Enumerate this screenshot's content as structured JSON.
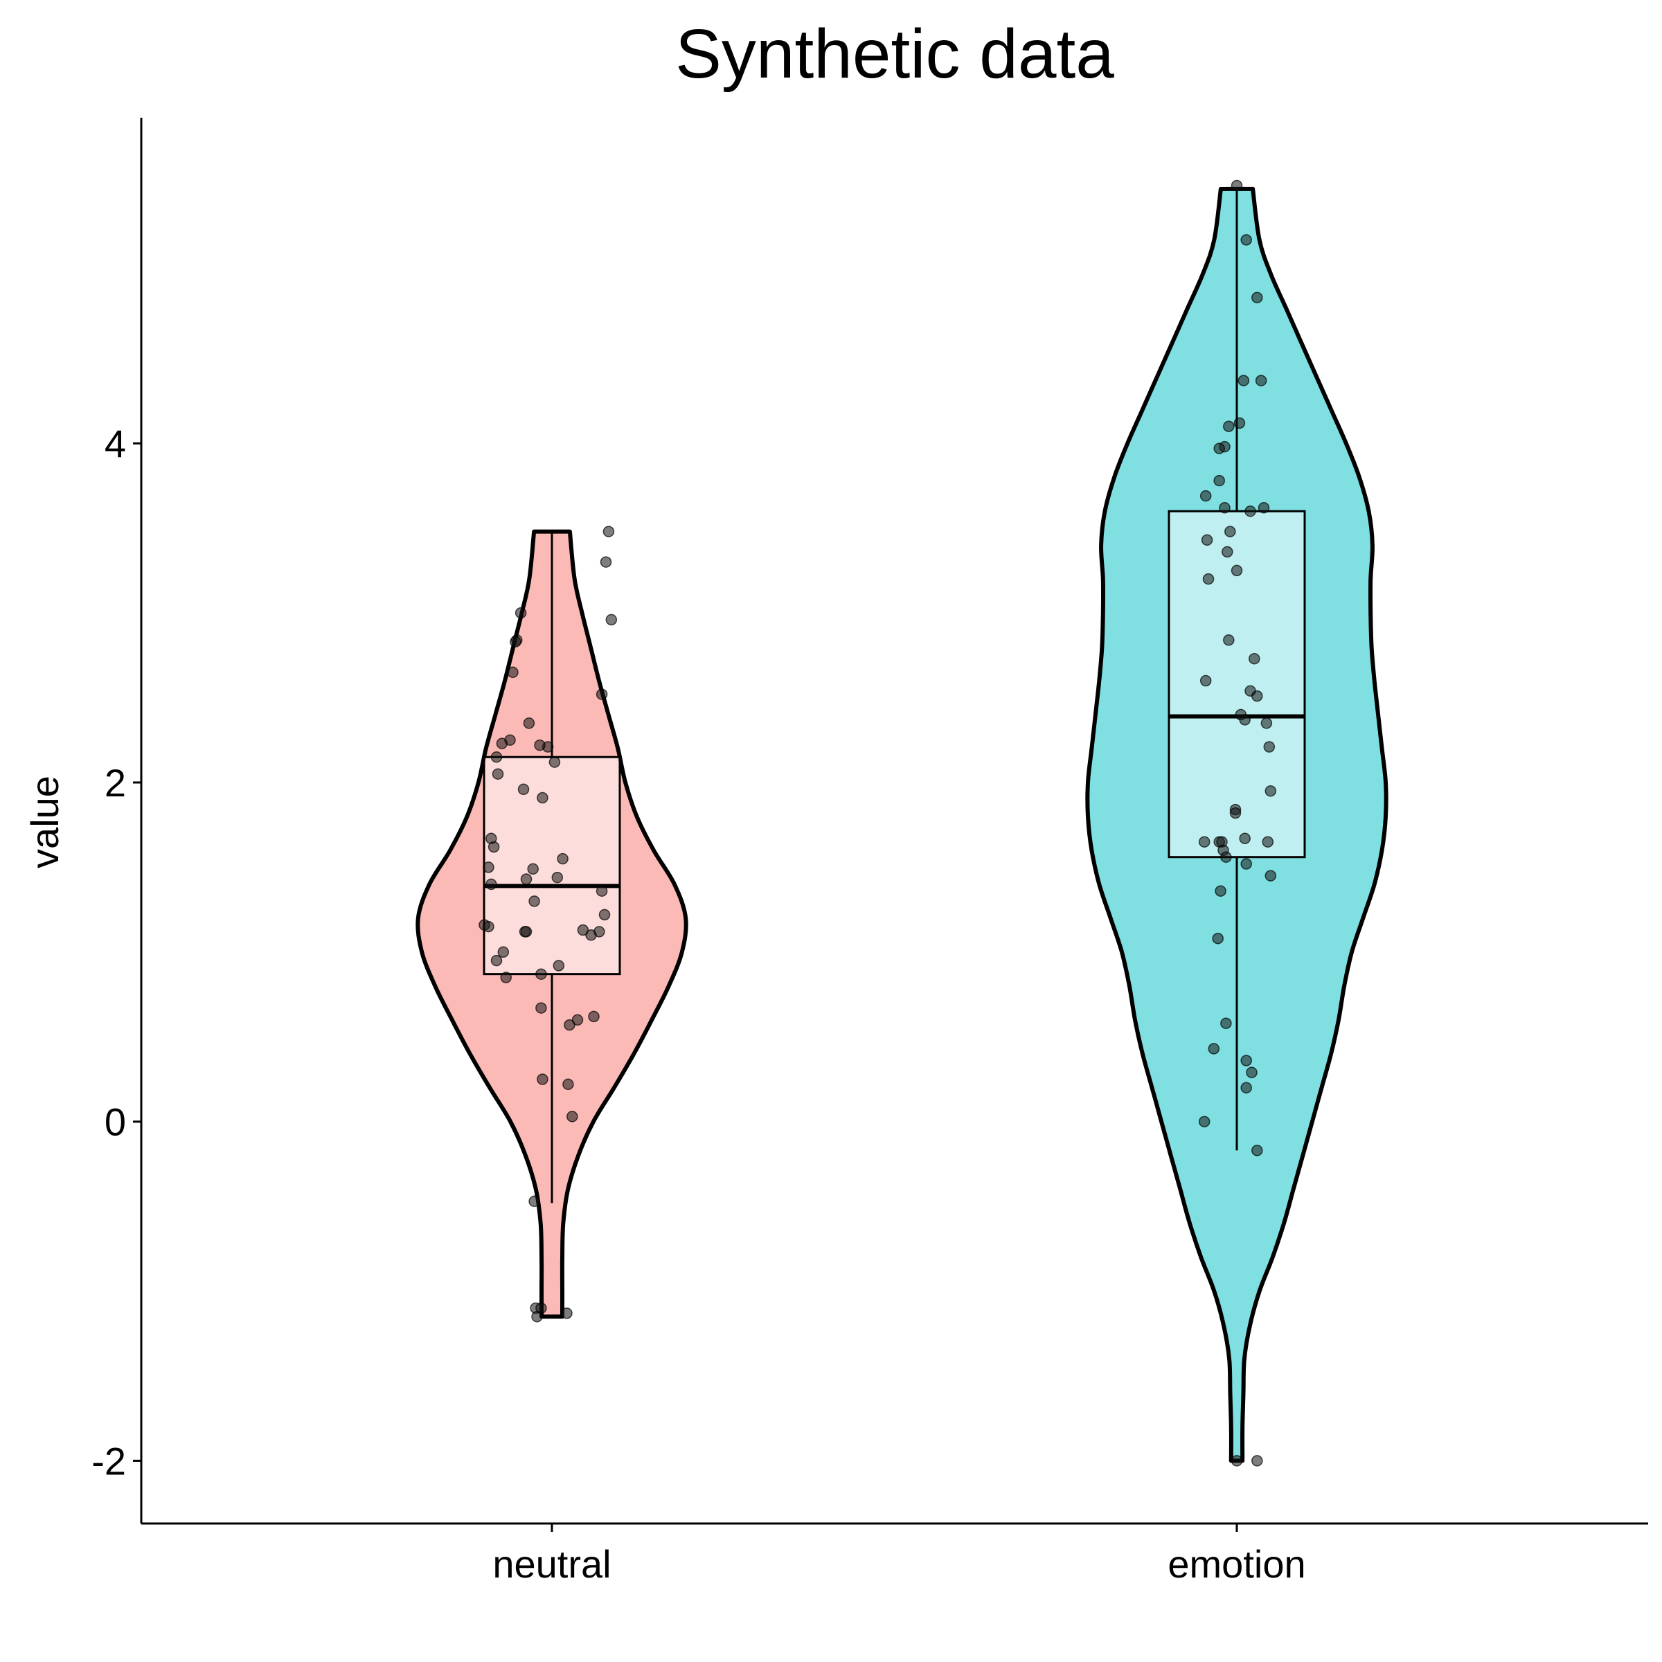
{
  "chart_data": {
    "type": "violin",
    "title": "Synthetic data",
    "xlabel": "",
    "ylabel": "value",
    "ylim": [
      -2.37,
      5.9
    ],
    "yticks": [
      -2,
      0,
      2,
      4
    ],
    "ytick_labels": [
      "-2",
      "0",
      "2",
      "4"
    ],
    "categories": [
      "neutral",
      "emotion"
    ],
    "grid": false,
    "legend": "none",
    "series": [
      {
        "category": "neutral",
        "fill": "#F8766D",
        "box": {
          "whisker_low": -0.48,
          "q1": 0.87,
          "median": 1.39,
          "q3": 2.15,
          "whisker_high": 3.48
        },
        "violin_range": [
          -1.15,
          3.48
        ],
        "violin_density": [
          [
            -1.15,
            0.11
          ],
          [
            -1.0,
            0.11
          ],
          [
            -0.8,
            0.11
          ],
          [
            -0.6,
            0.12
          ],
          [
            -0.4,
            0.17
          ],
          [
            -0.2,
            0.28
          ],
          [
            0.0,
            0.44
          ],
          [
            0.2,
            0.66
          ],
          [
            0.4,
            0.87
          ],
          [
            0.6,
            1.06
          ],
          [
            0.8,
            1.24
          ],
          [
            1.0,
            1.38
          ],
          [
            1.2,
            1.42
          ],
          [
            1.4,
            1.3
          ],
          [
            1.6,
            1.08
          ],
          [
            1.8,
            0.9
          ],
          [
            2.0,
            0.78
          ],
          [
            2.2,
            0.7
          ],
          [
            2.4,
            0.6
          ],
          [
            2.6,
            0.5
          ],
          [
            2.8,
            0.41
          ],
          [
            3.0,
            0.32
          ],
          [
            3.2,
            0.24
          ],
          [
            3.48,
            0.19
          ]
        ],
        "points": [
          [
            0.85,
            1.12
          ],
          [
            0.9,
            3.3
          ],
          [
            0.94,
            2.96
          ],
          [
            0.92,
            3.48
          ],
          [
            0.87,
            2.52
          ],
          [
            0.79,
            1.1
          ],
          [
            0.81,
            0.62
          ],
          [
            0.69,
            0.6
          ],
          [
            0.63,
            0.57
          ],
          [
            0.55,
            0.92
          ],
          [
            0.73,
            1.13
          ],
          [
            0.89,
            1.22
          ],
          [
            0.87,
            1.36
          ],
          [
            0.58,
            1.55
          ],
          [
            0.54,
            1.44
          ],
          [
            0.43,
            1.91
          ],
          [
            0.52,
            2.12
          ],
          [
            0.47,
            2.21
          ],
          [
            0.41,
            2.22
          ],
          [
            0.33,
            2.35
          ],
          [
            0.27,
            3.0
          ],
          [
            0.24,
            2.84
          ],
          [
            0.21,
            2.65
          ],
          [
            0.13,
            2.23
          ],
          [
            0.09,
            2.15
          ],
          [
            0.1,
            2.05
          ],
          [
            0.07,
            1.62
          ],
          [
            0.05,
            1.67
          ],
          [
            0.03,
            1.5
          ],
          [
            0.05,
            1.4
          ],
          [
            0.0,
            1.16
          ],
          [
            0.03,
            1.15
          ],
          [
            0.09,
            0.95
          ],
          [
            0.14,
            1.0
          ],
          [
            0.16,
            0.85
          ],
          [
            0.23,
            2.83
          ],
          [
            0.19,
            2.25
          ],
          [
            0.29,
            1.96
          ],
          [
            0.3,
            1.12
          ],
          [
            0.31,
            1.43
          ],
          [
            0.31,
            1.12
          ],
          [
            0.37,
            1.3
          ],
          [
            0.36,
            1.49
          ],
          [
            0.42,
            0.87
          ],
          [
            0.42,
            0.67
          ],
          [
            0.43,
            0.25
          ],
          [
            0.37,
            -0.47
          ],
          [
            0.38,
            -1.1
          ],
          [
            0.39,
            -1.15
          ],
          [
            0.42,
            -1.1
          ],
          [
            0.61,
            -1.13
          ],
          [
            0.62,
            0.22
          ],
          [
            0.65,
            0.03
          ]
        ]
      },
      {
        "category": "emotion",
        "fill": "#00BFC4",
        "box": {
          "whisker_low": -0.17,
          "q1": 1.56,
          "median": 2.39,
          "q3": 3.6,
          "whisker_high": 5.5
        },
        "violin_range": [
          -2.0,
          5.5
        ],
        "violin_density": [
          [
            -2.0,
            0.06
          ],
          [
            -1.8,
            0.06
          ],
          [
            -1.6,
            0.07
          ],
          [
            -1.4,
            0.08
          ],
          [
            -1.2,
            0.14
          ],
          [
            -1.0,
            0.24
          ],
          [
            -0.8,
            0.38
          ],
          [
            -0.6,
            0.5
          ],
          [
            -0.4,
            0.6
          ],
          [
            -0.2,
            0.7
          ],
          [
            0.0,
            0.8
          ],
          [
            0.2,
            0.9
          ],
          [
            0.4,
            1.0
          ],
          [
            0.6,
            1.08
          ],
          [
            0.8,
            1.14
          ],
          [
            1.0,
            1.22
          ],
          [
            1.2,
            1.34
          ],
          [
            1.4,
            1.46
          ],
          [
            1.6,
            1.54
          ],
          [
            1.8,
            1.58
          ],
          [
            2.0,
            1.58
          ],
          [
            2.2,
            1.54
          ],
          [
            2.4,
            1.5
          ],
          [
            2.6,
            1.46
          ],
          [
            2.8,
            1.43
          ],
          [
            3.0,
            1.42
          ],
          [
            3.2,
            1.42
          ],
          [
            3.4,
            1.44
          ],
          [
            3.6,
            1.4
          ],
          [
            3.8,
            1.3
          ],
          [
            4.0,
            1.16
          ],
          [
            4.2,
            1.0
          ],
          [
            4.4,
            0.84
          ],
          [
            4.6,
            0.68
          ],
          [
            4.8,
            0.52
          ],
          [
            5.0,
            0.36
          ],
          [
            5.2,
            0.24
          ],
          [
            5.5,
            0.17
          ]
        ],
        "points": [
          [
            1.0,
            5.52
          ],
          [
            1.07,
            5.2
          ],
          [
            1.15,
            4.86
          ],
          [
            1.18,
            4.37
          ],
          [
            1.05,
            4.37
          ],
          [
            1.02,
            4.12
          ],
          [
            0.94,
            4.1
          ],
          [
            0.91,
            3.98
          ],
          [
            0.87,
            3.97
          ],
          [
            0.87,
            3.78
          ],
          [
            0.77,
            3.69
          ],
          [
            0.78,
            3.43
          ],
          [
            0.79,
            3.2
          ],
          [
            0.77,
            2.6
          ],
          [
            0.76,
            1.65
          ],
          [
            0.87,
            1.65
          ],
          [
            0.89,
            1.65
          ],
          [
            0.86,
            1.08
          ],
          [
            0.83,
            0.43
          ],
          [
            0.92,
            0.58
          ],
          [
            0.76,
            0.0
          ],
          [
            0.91,
            3.62
          ],
          [
            0.93,
            3.36
          ],
          [
            0.95,
            3.48
          ],
          [
            1.0,
            3.25
          ],
          [
            0.94,
            2.84
          ],
          [
            1.03,
            2.4
          ],
          [
            1.06,
            2.37
          ],
          [
            1.1,
            3.6
          ],
          [
            1.13,
            2.73
          ],
          [
            1.1,
            2.54
          ],
          [
            1.15,
            2.51
          ],
          [
            1.2,
            3.62
          ],
          [
            1.22,
            2.35
          ],
          [
            1.24,
            2.21
          ],
          [
            1.25,
            1.95
          ],
          [
            1.23,
            1.65
          ],
          [
            1.25,
            1.45
          ],
          [
            1.06,
            1.67
          ],
          [
            1.07,
            1.52
          ],
          [
            0.99,
            1.84
          ],
          [
            0.99,
            1.82
          ],
          [
            0.9,
            1.6
          ],
          [
            0.92,
            1.56
          ],
          [
            0.88,
            1.36
          ],
          [
            1.07,
            0.36
          ],
          [
            1.07,
            0.2
          ],
          [
            1.11,
            0.29
          ],
          [
            1.15,
            -0.17
          ],
          [
            1.15,
            -2.0
          ],
          [
            1.0,
            -2.0
          ]
        ]
      }
    ]
  }
}
